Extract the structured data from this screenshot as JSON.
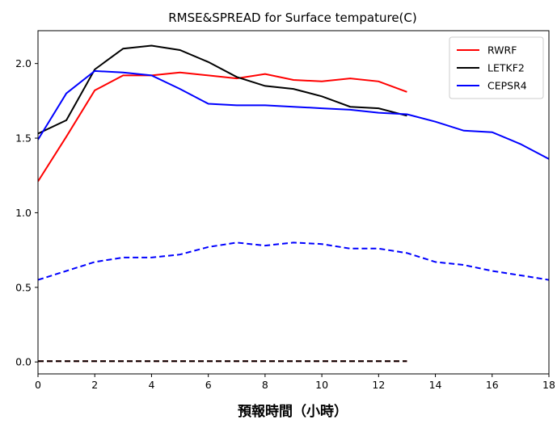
{
  "chart_data": {
    "type": "line",
    "title": "RMSE&SPREAD for Surface tempature(C)",
    "xlabel": "預報時間（小時）",
    "ylabel": "",
    "xlim": [
      0,
      18
    ],
    "ylim": [
      -0.08,
      2.22
    ],
    "xticks": [
      0,
      2,
      4,
      6,
      8,
      10,
      12,
      14,
      16,
      18
    ],
    "yticks": [
      0.0,
      0.5,
      1.0,
      1.5,
      2.0
    ],
    "xtick_labels": [
      "0",
      "2",
      "4",
      "6",
      "8",
      "10",
      "12",
      "14",
      "16",
      "18"
    ],
    "ytick_labels": [
      "0.0",
      "0.5",
      "1.0",
      "1.5",
      "2.0"
    ],
    "grid": false,
    "legend_position": "top-right",
    "series": [
      {
        "name": "RWRF",
        "color": "#ff0000",
        "dash": "solid",
        "in_legend": true,
        "x": [
          0,
          1,
          2,
          3,
          4,
          5,
          6,
          7,
          8,
          9,
          10,
          11,
          12,
          13
        ],
        "y": [
          1.21,
          1.51,
          1.82,
          1.92,
          1.92,
          1.94,
          1.92,
          1.9,
          1.93,
          1.89,
          1.88,
          1.9,
          1.88,
          1.81
        ]
      },
      {
        "name": "LETKF2",
        "color": "#000000",
        "dash": "solid",
        "in_legend": true,
        "x": [
          0,
          1,
          2,
          3,
          4,
          5,
          6,
          7,
          8,
          9,
          10,
          11,
          12,
          13
        ],
        "y": [
          1.53,
          1.62,
          1.96,
          2.1,
          2.12,
          2.09,
          2.01,
          1.91,
          1.85,
          1.83,
          1.78,
          1.71,
          1.7,
          1.65
        ]
      },
      {
        "name": "CEPSR4",
        "color": "#0000ff",
        "dash": "solid",
        "in_legend": true,
        "x": [
          0,
          1,
          2,
          3,
          4,
          5,
          6,
          7,
          8,
          9,
          10,
          11,
          12,
          13,
          14,
          15,
          16,
          17,
          18
        ],
        "y": [
          1.49,
          1.8,
          1.95,
          1.94,
          1.92,
          1.83,
          1.73,
          1.72,
          1.72,
          1.71,
          1.7,
          1.69,
          1.67,
          1.66,
          1.61,
          1.55,
          1.54,
          1.46,
          1.36
        ]
      },
      {
        "color": "#ff0000",
        "dash": "dashed",
        "in_legend": false,
        "x": [
          0,
          1,
          2,
          3,
          4,
          5,
          6,
          7,
          8,
          9,
          10,
          11,
          12,
          13
        ],
        "y": [
          0.005,
          0.005,
          0.005,
          0.005,
          0.005,
          0.005,
          0.005,
          0.005,
          0.005,
          0.005,
          0.005,
          0.005,
          0.005,
          0.005
        ]
      },
      {
        "color": "#000000",
        "dash": "dashed",
        "in_legend": false,
        "x": [
          0,
          1,
          2,
          3,
          4,
          5,
          6,
          7,
          8,
          9,
          10,
          11,
          12,
          13
        ],
        "y": [
          0.005,
          0.005,
          0.005,
          0.005,
          0.005,
          0.005,
          0.005,
          0.005,
          0.005,
          0.005,
          0.005,
          0.005,
          0.005,
          0.005
        ]
      },
      {
        "color": "#0000ff",
        "dash": "dashed",
        "in_legend": false,
        "x": [
          0,
          1,
          2,
          3,
          4,
          5,
          6,
          7,
          8,
          9,
          10,
          11,
          12,
          13,
          14,
          15,
          16,
          17,
          18
        ],
        "y": [
          0.55,
          0.61,
          0.67,
          0.7,
          0.7,
          0.72,
          0.77,
          0.8,
          0.78,
          0.8,
          0.79,
          0.76,
          0.76,
          0.73,
          0.67,
          0.65,
          0.61,
          0.58,
          0.55
        ]
      }
    ]
  }
}
